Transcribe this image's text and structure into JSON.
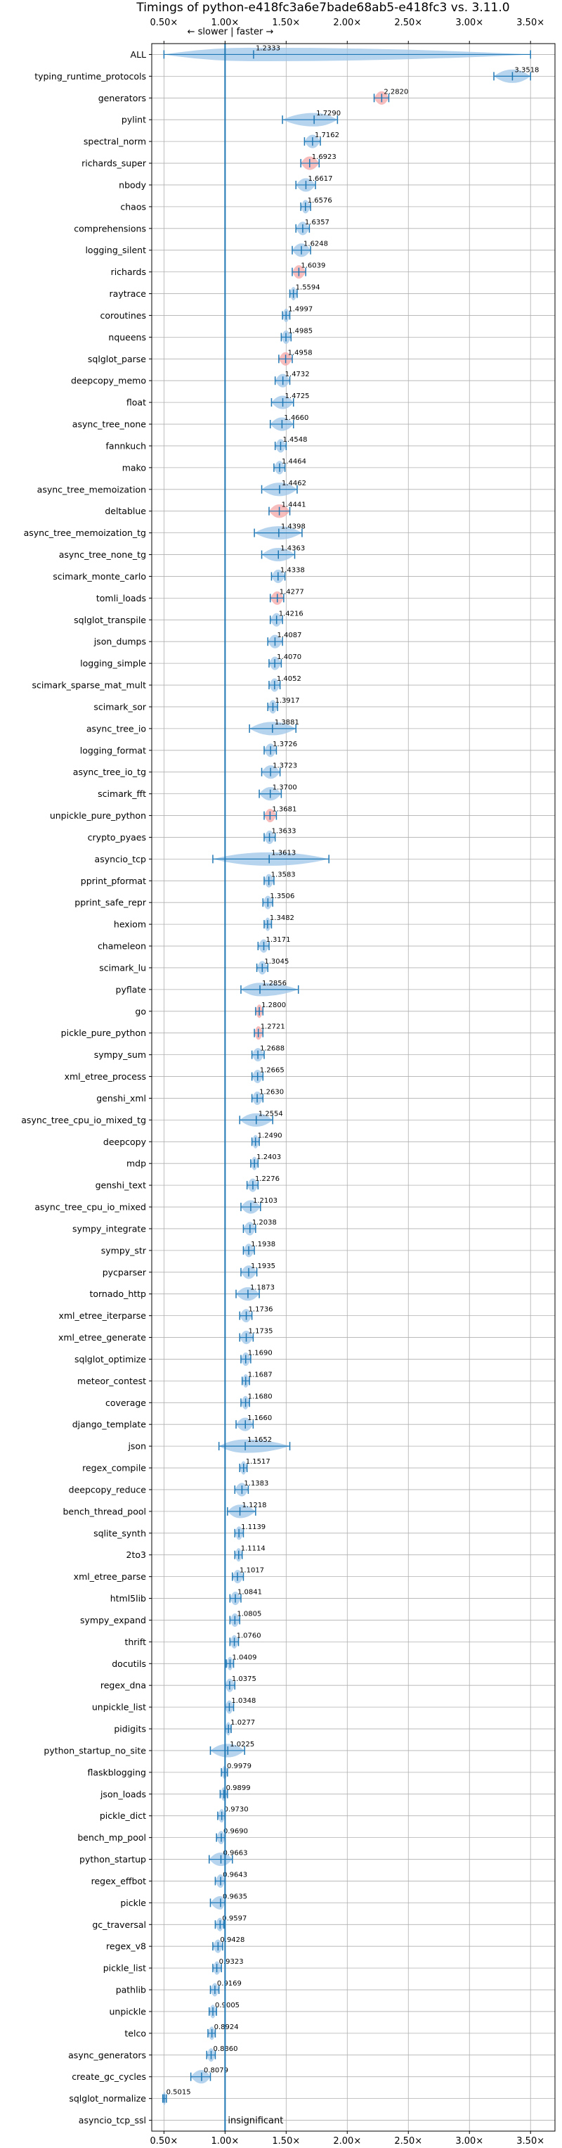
{
  "chart_data": {
    "type": "violin",
    "title": "Timings of python-e418fc3a6e7bade68ab5-e418fc3 vs. 3.11.0",
    "direction_note": "← slower | faster →",
    "insignificant_label": "insignificant",
    "xlim": [
      0.4,
      3.7
    ],
    "x_ticks": [
      0.5,
      1.0,
      1.5,
      2.0,
      2.5,
      3.0,
      3.5
    ],
    "x_tick_labels": [
      "0.50×",
      "1.00×",
      "1.50×",
      "2.00×",
      "2.50×",
      "3.00×",
      "3.50×"
    ],
    "reference_line": 1.0,
    "grid": true,
    "colors": {
      "violin": "#9fc5e8",
      "significant_faster": "#f4a6a6",
      "line": "#1f77b4"
    },
    "benchmarks": [
      {
        "name": "ALL",
        "value": 1.2333,
        "label": "1.2333",
        "min": 0.5,
        "max": 3.5,
        "highlight": false
      },
      {
        "name": "typing_runtime_protocols",
        "value": 3.3518,
        "label": "3.3518",
        "min": 3.2,
        "max": 3.5,
        "highlight": false
      },
      {
        "name": "generators",
        "value": 2.282,
        "label": "2.2820",
        "min": 2.22,
        "max": 2.34,
        "highlight": true
      },
      {
        "name": "pylint",
        "value": 1.729,
        "label": "1.7290",
        "min": 1.47,
        "max": 1.92,
        "highlight": false
      },
      {
        "name": "spectral_norm",
        "value": 1.7162,
        "label": "1.7162",
        "min": 1.65,
        "max": 1.78,
        "highlight": false
      },
      {
        "name": "richards_super",
        "value": 1.6923,
        "label": "1.6923",
        "min": 1.62,
        "max": 1.77,
        "highlight": true
      },
      {
        "name": "nbody",
        "value": 1.6617,
        "label": "1.6617",
        "min": 1.58,
        "max": 1.74,
        "highlight": false
      },
      {
        "name": "chaos",
        "value": 1.6576,
        "label": "1.6576",
        "min": 1.62,
        "max": 1.7,
        "highlight": false
      },
      {
        "name": "comprehensions",
        "value": 1.6357,
        "label": "1.6357",
        "min": 1.58,
        "max": 1.69,
        "highlight": false
      },
      {
        "name": "logging_silent",
        "value": 1.6248,
        "label": "1.6248",
        "min": 1.55,
        "max": 1.7,
        "highlight": false
      },
      {
        "name": "richards",
        "value": 1.6039,
        "label": "1.6039",
        "min": 1.55,
        "max": 1.66,
        "highlight": true
      },
      {
        "name": "raytrace",
        "value": 1.5594,
        "label": "1.5594",
        "min": 1.53,
        "max": 1.59,
        "highlight": false
      },
      {
        "name": "coroutines",
        "value": 1.4997,
        "label": "1.4997",
        "min": 1.47,
        "max": 1.53,
        "highlight": false
      },
      {
        "name": "nqueens",
        "value": 1.4985,
        "label": "1.4985",
        "min": 1.46,
        "max": 1.54,
        "highlight": false
      },
      {
        "name": "sqlglot_parse",
        "value": 1.4958,
        "label": "1.4958",
        "min": 1.44,
        "max": 1.55,
        "highlight": true
      },
      {
        "name": "deepcopy_memo",
        "value": 1.4732,
        "label": "1.4732",
        "min": 1.41,
        "max": 1.53,
        "highlight": false
      },
      {
        "name": "float",
        "value": 1.4725,
        "label": "1.4725",
        "min": 1.38,
        "max": 1.56,
        "highlight": false
      },
      {
        "name": "async_tree_none",
        "value": 1.466,
        "label": "1.4660",
        "min": 1.37,
        "max": 1.56,
        "highlight": false
      },
      {
        "name": "fannkuch",
        "value": 1.4548,
        "label": "1.4548",
        "min": 1.41,
        "max": 1.5,
        "highlight": false
      },
      {
        "name": "mako",
        "value": 1.4464,
        "label": "1.4464",
        "min": 1.4,
        "max": 1.49,
        "highlight": false
      },
      {
        "name": "async_tree_memoization",
        "value": 1.4462,
        "label": "1.4462",
        "min": 1.3,
        "max": 1.59,
        "highlight": false
      },
      {
        "name": "deltablue",
        "value": 1.4441,
        "label": "1.4441",
        "min": 1.36,
        "max": 1.53,
        "highlight": true
      },
      {
        "name": "async_tree_memoization_tg",
        "value": 1.4398,
        "label": "1.4398",
        "min": 1.24,
        "max": 1.63,
        "highlight": false
      },
      {
        "name": "async_tree_none_tg",
        "value": 1.4363,
        "label": "1.4363",
        "min": 1.3,
        "max": 1.57,
        "highlight": false
      },
      {
        "name": "scimark_monte_carlo",
        "value": 1.4338,
        "label": "1.4338",
        "min": 1.38,
        "max": 1.49,
        "highlight": false
      },
      {
        "name": "tomli_loads",
        "value": 1.4277,
        "label": "1.4277",
        "min": 1.37,
        "max": 1.48,
        "highlight": true
      },
      {
        "name": "sqlglot_transpile",
        "value": 1.4216,
        "label": "1.4216",
        "min": 1.37,
        "max": 1.47,
        "highlight": false
      },
      {
        "name": "json_dumps",
        "value": 1.4087,
        "label": "1.4087",
        "min": 1.35,
        "max": 1.47,
        "highlight": false
      },
      {
        "name": "logging_simple",
        "value": 1.407,
        "label": "1.4070",
        "min": 1.36,
        "max": 1.46,
        "highlight": false
      },
      {
        "name": "scimark_sparse_mat_mult",
        "value": 1.4052,
        "label": "1.4052",
        "min": 1.36,
        "max": 1.45,
        "highlight": false
      },
      {
        "name": "scimark_sor",
        "value": 1.3917,
        "label": "1.3917",
        "min": 1.35,
        "max": 1.43,
        "highlight": false
      },
      {
        "name": "async_tree_io",
        "value": 1.3881,
        "label": "1.3881",
        "min": 1.2,
        "max": 1.58,
        "highlight": false
      },
      {
        "name": "logging_format",
        "value": 1.3726,
        "label": "1.3726",
        "min": 1.32,
        "max": 1.42,
        "highlight": false
      },
      {
        "name": "async_tree_io_tg",
        "value": 1.3723,
        "label": "1.3723",
        "min": 1.3,
        "max": 1.45,
        "highlight": false
      },
      {
        "name": "scimark_fft",
        "value": 1.37,
        "label": "1.3700",
        "min": 1.28,
        "max": 1.46,
        "highlight": false
      },
      {
        "name": "unpickle_pure_python",
        "value": 1.3681,
        "label": "1.3681",
        "min": 1.32,
        "max": 1.42,
        "highlight": true
      },
      {
        "name": "crypto_pyaes",
        "value": 1.3633,
        "label": "1.3633",
        "min": 1.32,
        "max": 1.41,
        "highlight": false
      },
      {
        "name": "asyncio_tcp",
        "value": 1.3613,
        "label": "1.3613",
        "min": 0.9,
        "max": 1.85,
        "highlight": false
      },
      {
        "name": "pprint_pformat",
        "value": 1.3583,
        "label": "1.3583",
        "min": 1.32,
        "max": 1.4,
        "highlight": false
      },
      {
        "name": "pprint_safe_repr",
        "value": 1.3506,
        "label": "1.3506",
        "min": 1.31,
        "max": 1.39,
        "highlight": false
      },
      {
        "name": "hexiom",
        "value": 1.3482,
        "label": "1.3482",
        "min": 1.32,
        "max": 1.38,
        "highlight": false
      },
      {
        "name": "chameleon",
        "value": 1.3171,
        "label": "1.3171",
        "min": 1.27,
        "max": 1.36,
        "highlight": false
      },
      {
        "name": "scimark_lu",
        "value": 1.3045,
        "label": "1.3045",
        "min": 1.26,
        "max": 1.35,
        "highlight": false
      },
      {
        "name": "pyflate",
        "value": 1.2856,
        "label": "1.2856",
        "min": 1.13,
        "max": 1.6,
        "highlight": false
      },
      {
        "name": "go",
        "value": 1.28,
        "label": "1.2800",
        "min": 1.25,
        "max": 1.31,
        "highlight": true
      },
      {
        "name": "pickle_pure_python",
        "value": 1.2721,
        "label": "1.2721",
        "min": 1.24,
        "max": 1.31,
        "highlight": true
      },
      {
        "name": "sympy_sum",
        "value": 1.2688,
        "label": "1.2688",
        "min": 1.22,
        "max": 1.32,
        "highlight": false
      },
      {
        "name": "xml_etree_process",
        "value": 1.2665,
        "label": "1.2665",
        "min": 1.22,
        "max": 1.31,
        "highlight": false
      },
      {
        "name": "genshi_xml",
        "value": 1.263,
        "label": "1.2630",
        "min": 1.22,
        "max": 1.31,
        "highlight": false
      },
      {
        "name": "async_tree_cpu_io_mixed_tg",
        "value": 1.2554,
        "label": "1.2554",
        "min": 1.12,
        "max": 1.39,
        "highlight": false
      },
      {
        "name": "deepcopy",
        "value": 1.249,
        "label": "1.2490",
        "min": 1.22,
        "max": 1.28,
        "highlight": false
      },
      {
        "name": "mdp",
        "value": 1.2403,
        "label": "1.2403",
        "min": 1.21,
        "max": 1.27,
        "highlight": false
      },
      {
        "name": "genshi_text",
        "value": 1.2276,
        "label": "1.2276",
        "min": 1.18,
        "max": 1.27,
        "highlight": false
      },
      {
        "name": "async_tree_cpu_io_mixed",
        "value": 1.2103,
        "label": "1.2103",
        "min": 1.13,
        "max": 1.29,
        "highlight": false
      },
      {
        "name": "sympy_integrate",
        "value": 1.2038,
        "label": "1.2038",
        "min": 1.15,
        "max": 1.25,
        "highlight": false
      },
      {
        "name": "sympy_str",
        "value": 1.1938,
        "label": "1.1938",
        "min": 1.15,
        "max": 1.24,
        "highlight": false
      },
      {
        "name": "pycparser",
        "value": 1.1935,
        "label": "1.1935",
        "min": 1.13,
        "max": 1.26,
        "highlight": false
      },
      {
        "name": "tornado_http",
        "value": 1.1873,
        "label": "1.1873",
        "min": 1.09,
        "max": 1.28,
        "highlight": false
      },
      {
        "name": "xml_etree_iterparse",
        "value": 1.1736,
        "label": "1.1736",
        "min": 1.12,
        "max": 1.22,
        "highlight": false
      },
      {
        "name": "xml_etree_generate",
        "value": 1.1735,
        "label": "1.1735",
        "min": 1.12,
        "max": 1.23,
        "highlight": false
      },
      {
        "name": "sqlglot_optimize",
        "value": 1.169,
        "label": "1.1690",
        "min": 1.13,
        "max": 1.21,
        "highlight": false
      },
      {
        "name": "meteor_contest",
        "value": 1.1687,
        "label": "1.1687",
        "min": 1.14,
        "max": 1.2,
        "highlight": false
      },
      {
        "name": "coverage",
        "value": 1.168,
        "label": "1.1680",
        "min": 1.13,
        "max": 1.2,
        "highlight": false
      },
      {
        "name": "django_template",
        "value": 1.166,
        "label": "1.1660",
        "min": 1.09,
        "max": 1.23,
        "highlight": false
      },
      {
        "name": "json",
        "value": 1.1652,
        "label": "1.1652",
        "min": 0.95,
        "max": 1.53,
        "highlight": false
      },
      {
        "name": "regex_compile",
        "value": 1.1517,
        "label": "1.1517",
        "min": 1.12,
        "max": 1.18,
        "highlight": false
      },
      {
        "name": "deepcopy_reduce",
        "value": 1.1383,
        "label": "1.1383",
        "min": 1.08,
        "max": 1.19,
        "highlight": false
      },
      {
        "name": "bench_thread_pool",
        "value": 1.1218,
        "label": "1.1218",
        "min": 1.02,
        "max": 1.25,
        "highlight": false
      },
      {
        "name": "sqlite_synth",
        "value": 1.1139,
        "label": "1.1139",
        "min": 1.08,
        "max": 1.15,
        "highlight": false
      },
      {
        "name": "2to3",
        "value": 1.1114,
        "label": "1.1114",
        "min": 1.08,
        "max": 1.14,
        "highlight": false
      },
      {
        "name": "xml_etree_parse",
        "value": 1.1017,
        "label": "1.1017",
        "min": 1.06,
        "max": 1.15,
        "highlight": false
      },
      {
        "name": "html5lib",
        "value": 1.0841,
        "label": "1.0841",
        "min": 1.04,
        "max": 1.13,
        "highlight": false
      },
      {
        "name": "sympy_expand",
        "value": 1.0805,
        "label": "1.0805",
        "min": 1.04,
        "max": 1.12,
        "highlight": false
      },
      {
        "name": "thrift",
        "value": 1.076,
        "label": "1.0760",
        "min": 1.04,
        "max": 1.11,
        "highlight": false
      },
      {
        "name": "docutils",
        "value": 1.0409,
        "label": "1.0409",
        "min": 1.01,
        "max": 1.07,
        "highlight": false
      },
      {
        "name": "regex_dna",
        "value": 1.0375,
        "label": "1.0375",
        "min": 1.0,
        "max": 1.08,
        "highlight": false
      },
      {
        "name": "unpickle_list",
        "value": 1.0348,
        "label": "1.0348",
        "min": 1.0,
        "max": 1.07,
        "highlight": false
      },
      {
        "name": "pidigits",
        "value": 1.0277,
        "label": "1.0277",
        "min": 1.0,
        "max": 1.05,
        "highlight": false
      },
      {
        "name": "python_startup_no_site",
        "value": 1.0225,
        "label": "1.0225",
        "min": 0.88,
        "max": 1.16,
        "highlight": false
      },
      {
        "name": "flaskblogging",
        "value": 0.9979,
        "label": "0.9979",
        "min": 0.97,
        "max": 1.02,
        "highlight": false
      },
      {
        "name": "json_loads",
        "value": 0.9899,
        "label": "0.9899",
        "min": 0.96,
        "max": 1.02,
        "highlight": false
      },
      {
        "name": "pickle_dict",
        "value": 0.973,
        "label": "0.9730",
        "min": 0.94,
        "max": 1.0,
        "highlight": false
      },
      {
        "name": "bench_mp_pool",
        "value": 0.969,
        "label": "0.9690",
        "min": 0.93,
        "max": 1.0,
        "highlight": false
      },
      {
        "name": "python_startup",
        "value": 0.9663,
        "label": "0.9663",
        "min": 0.87,
        "max": 1.06,
        "highlight": false
      },
      {
        "name": "regex_effbot",
        "value": 0.9643,
        "label": "0.9643",
        "min": 0.92,
        "max": 1.0,
        "highlight": false
      },
      {
        "name": "pickle",
        "value": 0.9635,
        "label": "0.9635",
        "min": 0.88,
        "max": 1.0,
        "highlight": false
      },
      {
        "name": "gc_traversal",
        "value": 0.9597,
        "label": "0.9597",
        "min": 0.92,
        "max": 0.99,
        "highlight": false
      },
      {
        "name": "regex_v8",
        "value": 0.9428,
        "label": "0.9428",
        "min": 0.9,
        "max": 0.98,
        "highlight": false
      },
      {
        "name": "pickle_list",
        "value": 0.9323,
        "label": "0.9323",
        "min": 0.9,
        "max": 0.97,
        "highlight": false
      },
      {
        "name": "pathlib",
        "value": 0.9169,
        "label": "0.9169",
        "min": 0.88,
        "max": 0.95,
        "highlight": false
      },
      {
        "name": "unpickle",
        "value": 0.9005,
        "label": "0.9005",
        "min": 0.87,
        "max": 0.93,
        "highlight": false
      },
      {
        "name": "telco",
        "value": 0.8924,
        "label": "0.8924",
        "min": 0.86,
        "max": 0.92,
        "highlight": false
      },
      {
        "name": "async_generators",
        "value": 0.886,
        "label": "0.8860",
        "min": 0.85,
        "max": 0.92,
        "highlight": false
      },
      {
        "name": "create_gc_cycles",
        "value": 0.8079,
        "label": "0.8079",
        "min": 0.72,
        "max": 0.88,
        "highlight": false
      },
      {
        "name": "sqlglot_normalize",
        "value": 0.5015,
        "label": "0.5015",
        "min": 0.49,
        "max": 0.52,
        "highlight": false
      },
      {
        "name": "asyncio_tcp_ssl",
        "value": null,
        "label": "",
        "min": null,
        "max": null,
        "highlight": false,
        "insignificant": true
      }
    ]
  }
}
